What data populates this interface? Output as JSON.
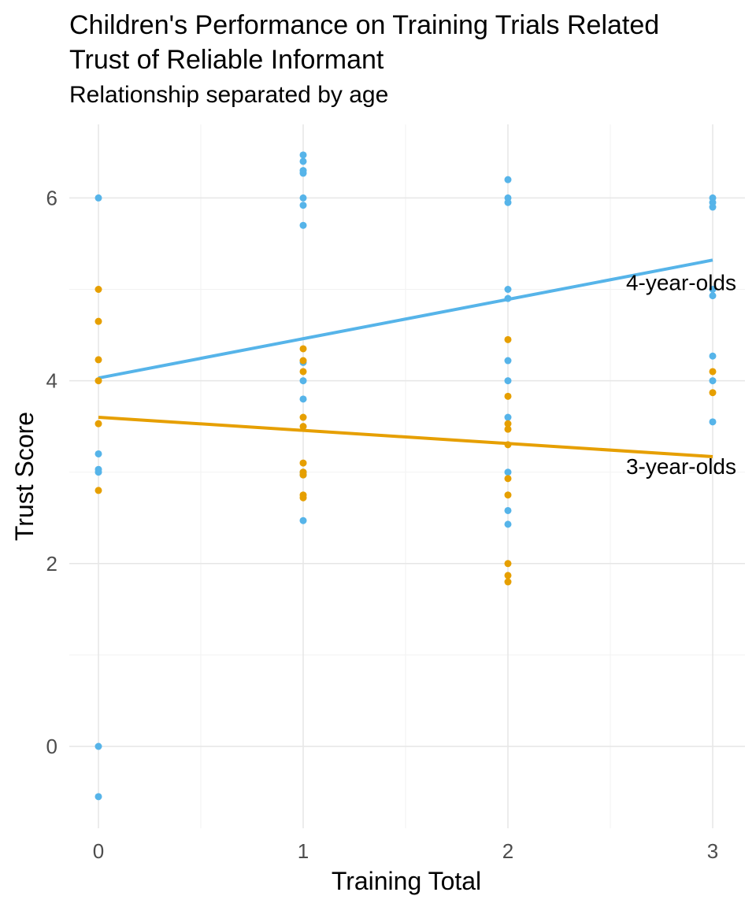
{
  "chart_data": {
    "type": "scatter",
    "title": "Children's Performance on Training Trials Related\nTrust of Reliable Informant",
    "subtitle": "Relationship separated by age",
    "xlabel": "Training Total",
    "ylabel": "Trust Score",
    "xlim": [
      -0.15,
      3.15
    ],
    "ylim": [
      -0.8,
      6.8
    ],
    "x_ticks": [
      0,
      1,
      2,
      3
    ],
    "y_ticks": [
      0,
      2,
      4,
      6
    ],
    "grid": true,
    "series": [
      {
        "name": "4-year-olds",
        "color": "#56B4E9",
        "points": [
          [
            0,
            6.0
          ],
          [
            0,
            3.2
          ],
          [
            0,
            3.03
          ],
          [
            0,
            3.0
          ],
          [
            0,
            0.0
          ],
          [
            0,
            -0.55
          ],
          [
            1,
            6.47
          ],
          [
            1,
            6.4
          ],
          [
            1,
            6.3
          ],
          [
            1,
            6.27
          ],
          [
            1,
            6.0
          ],
          [
            1,
            5.92
          ],
          [
            1,
            5.7
          ],
          [
            1,
            4.2
          ],
          [
            1,
            4.0
          ],
          [
            1,
            3.8
          ],
          [
            1,
            3.0
          ],
          [
            1,
            2.97
          ],
          [
            1,
            2.47
          ],
          [
            2,
            6.2
          ],
          [
            2,
            6.0
          ],
          [
            2,
            5.95
          ],
          [
            2,
            5.0
          ],
          [
            2,
            4.9
          ],
          [
            2,
            4.22
          ],
          [
            2,
            4.0
          ],
          [
            2,
            3.6
          ],
          [
            2,
            3.0
          ],
          [
            2,
            2.58
          ],
          [
            2,
            2.43
          ],
          [
            3,
            6.0
          ],
          [
            3,
            5.95
          ],
          [
            3,
            5.9
          ],
          [
            3,
            5.0
          ],
          [
            3,
            4.93
          ],
          [
            3,
            4.27
          ],
          [
            3,
            4.0
          ],
          [
            3,
            3.55
          ]
        ],
        "fit": {
          "x": [
            0,
            3
          ],
          "y": [
            4.03,
            5.32
          ]
        }
      },
      {
        "name": "3-year-olds",
        "color": "#E69F00",
        "points": [
          [
            0,
            5.0
          ],
          [
            0,
            4.65
          ],
          [
            0,
            4.23
          ],
          [
            0,
            4.0
          ],
          [
            0,
            3.53
          ],
          [
            0,
            2.8
          ],
          [
            1,
            4.35
          ],
          [
            1,
            4.22
          ],
          [
            1,
            4.1
          ],
          [
            1,
            3.6
          ],
          [
            1,
            3.5
          ],
          [
            1,
            3.1
          ],
          [
            1,
            3.0
          ],
          [
            1,
            2.97
          ],
          [
            1,
            2.75
          ],
          [
            1,
            2.72
          ],
          [
            2,
            4.45
          ],
          [
            2,
            3.83
          ],
          [
            2,
            3.53
          ],
          [
            2,
            3.47
          ],
          [
            2,
            3.3
          ],
          [
            2,
            2.93
          ],
          [
            2,
            2.75
          ],
          [
            2,
            2.0
          ],
          [
            2,
            1.87
          ],
          [
            2,
            1.8
          ],
          [
            3,
            4.1
          ],
          [
            3,
            3.87
          ]
        ],
        "fit": {
          "x": [
            0,
            3
          ],
          "y": [
            3.6,
            3.17
          ]
        }
      }
    ]
  }
}
